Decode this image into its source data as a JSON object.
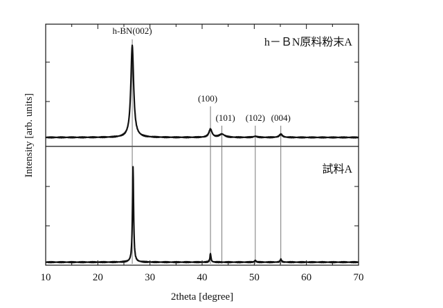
{
  "chart_data": {
    "type": "line",
    "xlabel": "2theta  [degree]",
    "ylabel": "Intensity  [arb. units]",
    "xlim": [
      10,
      70
    ],
    "x_ticks": [
      "10",
      "20",
      "30",
      "40",
      "50",
      "60",
      "70"
    ],
    "grid": false,
    "panels": [
      {
        "label": "h－ＢN原料粉末A",
        "peaks": [
          {
            "x": 26.6,
            "y": 1.0,
            "w": 0.32
          },
          {
            "x": 41.6,
            "y": 0.09,
            "w": 0.35
          },
          {
            "x": 43.8,
            "y": 0.035,
            "w": 0.6
          },
          {
            "x": 50.2,
            "y": 0.012,
            "w": 0.4
          },
          {
            "x": 55.1,
            "y": 0.035,
            "w": 0.35
          }
        ],
        "baseline": 0.015
      },
      {
        "label": "試料A",
        "peaks": [
          {
            "x": 26.75,
            "y": 1.0,
            "w": 0.13
          },
          {
            "x": 41.6,
            "y": 0.09,
            "w": 0.12
          },
          {
            "x": 50.2,
            "y": 0.02,
            "w": 0.15
          },
          {
            "x": 55.1,
            "y": 0.03,
            "w": 0.15
          }
        ],
        "baseline": 0.01
      }
    ],
    "peak_labels": [
      {
        "text": "h-BN(002)",
        "x": 26.6
      },
      {
        "text": "(100)",
        "x": 41.6
      },
      {
        "text": "(101)",
        "x": 43.8
      },
      {
        "text": "(102)",
        "x": 50.2
      },
      {
        "text": "(004)",
        "x": 55.1
      }
    ]
  }
}
